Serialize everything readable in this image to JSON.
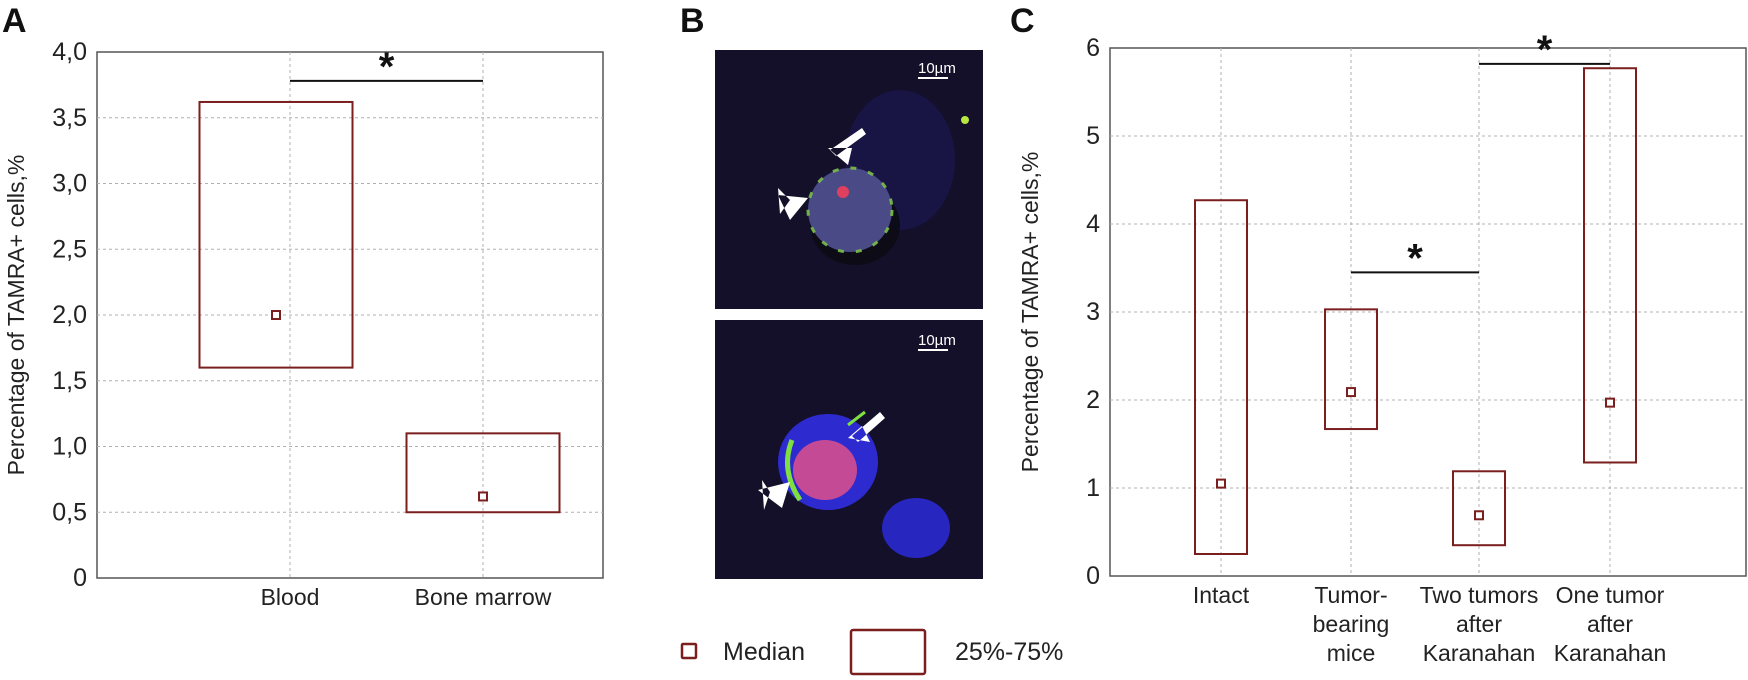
{
  "panel_labels": {
    "a": "A",
    "b": "B",
    "c": "C"
  },
  "colors": {
    "box": "#7a1e1e",
    "grid": "#b0b0b0",
    "axis": "#555555",
    "micro_bg": "#14102a"
  },
  "legend": {
    "median_label": "Median",
    "range_label": "25%-75%"
  },
  "micrographs": {
    "scale_bar_label": "10µm",
    "description_icons": [
      "arrow-icon",
      "arrowhead-icon"
    ]
  },
  "chart_data": [
    {
      "type": "box",
      "panel": "A",
      "ylabel": "Percentage of TAMRA+ cells,%",
      "ylim": [
        0,
        4.0
      ],
      "yticks": [
        "0",
        "0,5",
        "1,0",
        "1,5",
        "2,0",
        "2,5",
        "3,0",
        "3,5",
        "4,0"
      ],
      "categories": [
        "Blood",
        "Bone marrow"
      ],
      "boxes": [
        {
          "category": "Blood",
          "q1": 1.6,
          "q3": 3.62,
          "median": 2.0
        },
        {
          "category": "Bone marrow",
          "q1": 0.5,
          "q3": 1.1,
          "median": 0.62
        }
      ],
      "significance": [
        {
          "from": "Blood",
          "to": "Bone marrow",
          "y": 3.78,
          "label": "*"
        }
      ],
      "grid": true
    },
    {
      "type": "box",
      "panel": "C",
      "ylabel": "Percentage of TAMRA+ cells,%",
      "ylim": [
        0,
        6
      ],
      "yticks": [
        "0",
        "1",
        "2",
        "3",
        "4",
        "5",
        "6"
      ],
      "categories": [
        [
          "Intact"
        ],
        [
          "Tumor-",
          "bearing",
          "mice"
        ],
        [
          "Two tumors",
          "after",
          "Karanahan"
        ],
        [
          "One tumor",
          "after",
          "Karanahan"
        ]
      ],
      "boxes": [
        {
          "q1": 0.25,
          "q3": 4.27,
          "median": 1.05
        },
        {
          "q1": 1.67,
          "q3": 3.03,
          "median": 2.09
        },
        {
          "q1": 0.35,
          "q3": 1.19,
          "median": 0.69
        },
        {
          "q1": 1.29,
          "q3": 5.77,
          "median": 1.97
        }
      ],
      "significance": [
        {
          "from": 1,
          "to": 2,
          "y": 3.45,
          "label": "*"
        },
        {
          "from": 2,
          "to": 3,
          "y": 5.82,
          "label": "*"
        }
      ],
      "grid": true
    }
  ]
}
